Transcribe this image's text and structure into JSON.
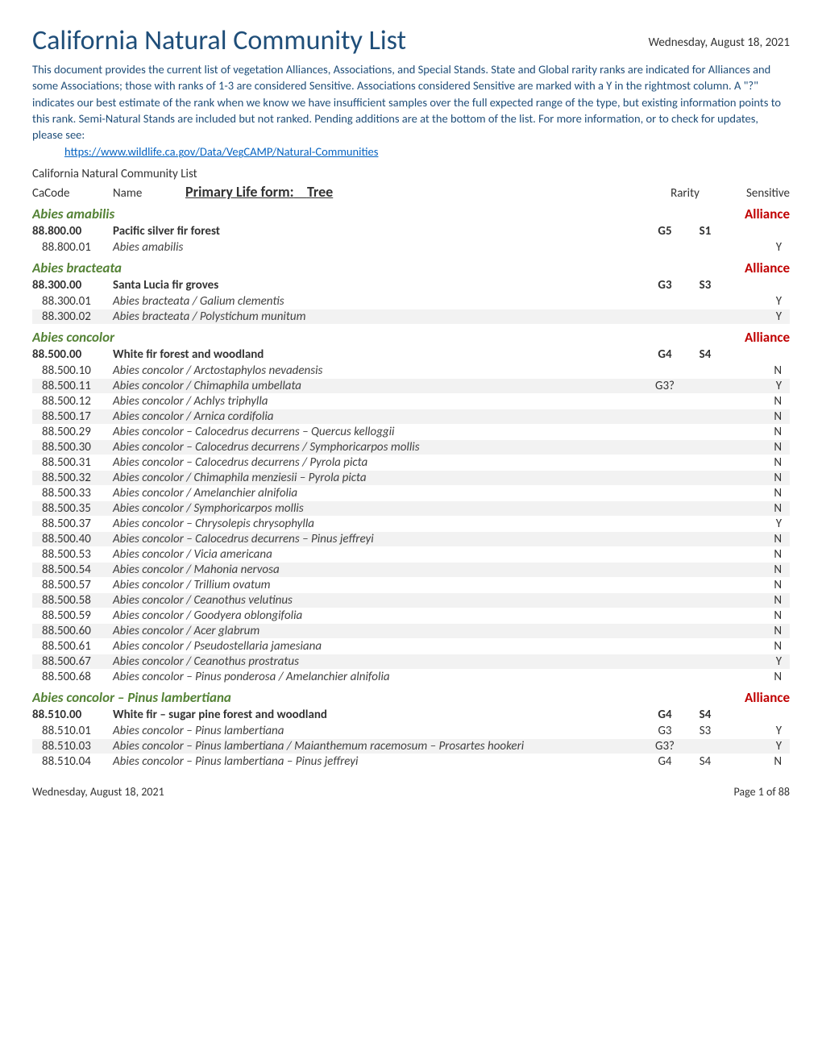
{
  "header": {
    "main_title": "California Natural Community List",
    "date": "Wednesday, August 18, 2021",
    "intro_text": "This document provides the current list of vegetation Alliances, Associations, and Special Stands. State and Global rarity ranks are indicated for Alliances and some Associations; those with ranks of 1-3 are considered Sensitive. Associations considered Sensitive are marked with a Y in the rightmost column. A \"?\" indicates our best estimate of the rank when we know we have insufficient samples over the full expected range of the type, but existing information points to this rank. Semi-Natural Stands are included but not ranked. Pending additions are at the bottom of the list. For more information, or to check for updates, please see:",
    "link_text": "https://www.wildlife.ca.gov/Data/VegCAMP/Natural-Communities",
    "list_title": "California Natural Community List",
    "primary_life_form_label": "Primary Life form:",
    "primary_life_form_value": "Tree",
    "col_code": "CaCode",
    "col_name": "Name",
    "col_rarity": "Rarity",
    "col_sensitive": "Sensitive"
  },
  "alliance_label": "Alliance",
  "colors": {
    "title": "#1f4e79",
    "species": "#548235",
    "alliance": "#c00000",
    "link": "#0563c1",
    "stripe": "#f2f2f2",
    "entry_text": "#404040"
  },
  "sections": [
    {
      "species": "Abies amabilis",
      "group": {
        "code": "88.800.00",
        "name": "Pacific silver fir forest",
        "g": "G5",
        "s": "S1"
      },
      "entries": [
        {
          "code": "88.800.01",
          "name": "Abies amabilis",
          "g": "",
          "s": "",
          "sensitive": "Y",
          "striped": false
        }
      ]
    },
    {
      "species": "Abies bracteata",
      "group": {
        "code": "88.300.00",
        "name": "Santa Lucia fir groves",
        "g": "G3",
        "s": "S3"
      },
      "entries": [
        {
          "code": "88.300.01",
          "name": "Abies bracteata / Galium clementis",
          "g": "",
          "s": "",
          "sensitive": "Y",
          "striped": false
        },
        {
          "code": "88.300.02",
          "name": "Abies bracteata / Polystichum munitum",
          "g": "",
          "s": "",
          "sensitive": "Y",
          "striped": true
        }
      ]
    },
    {
      "species": "Abies concolor",
      "group": {
        "code": "88.500.00",
        "name": "White fir forest and woodland",
        "g": "G4",
        "s": "S4"
      },
      "entries": [
        {
          "code": "88.500.10",
          "name": "Abies concolor / Arctostaphylos nevadensis",
          "g": "",
          "s": "",
          "sensitive": "N",
          "striped": false
        },
        {
          "code": "88.500.11",
          "name": "Abies concolor / Chimaphila umbellata",
          "g": "G3?",
          "s": "",
          "sensitive": "Y",
          "striped": true
        },
        {
          "code": "88.500.12",
          "name": "Abies concolor / Achlys triphylla",
          "g": "",
          "s": "",
          "sensitive": "N",
          "striped": false
        },
        {
          "code": "88.500.17",
          "name": "Abies concolor / Arnica cordifolia",
          "g": "",
          "s": "",
          "sensitive": "N",
          "striped": true
        },
        {
          "code": "88.500.29",
          "name": "Abies concolor – Calocedrus decurrens – Quercus kelloggii",
          "g": "",
          "s": "",
          "sensitive": "N",
          "striped": false
        },
        {
          "code": "88.500.30",
          "name": "Abies concolor – Calocedrus decurrens / Symphoricarpos mollis",
          "g": "",
          "s": "",
          "sensitive": "N",
          "striped": true
        },
        {
          "code": "88.500.31",
          "name": "Abies concolor – Calocedrus decurrens / Pyrola picta",
          "g": "",
          "s": "",
          "sensitive": "N",
          "striped": false
        },
        {
          "code": "88.500.32",
          "name": "Abies concolor / Chimaphila menziesii – Pyrola picta",
          "g": "",
          "s": "",
          "sensitive": "N",
          "striped": true
        },
        {
          "code": "88.500.33",
          "name": "Abies concolor / Amelanchier alnifolia",
          "g": "",
          "s": "",
          "sensitive": "N",
          "striped": false
        },
        {
          "code": "88.500.35",
          "name": "Abies concolor / Symphoricarpos mollis",
          "g": "",
          "s": "",
          "sensitive": "N",
          "striped": true
        },
        {
          "code": "88.500.37",
          "name": "Abies concolor – Chrysolepis chrysophylla",
          "g": "",
          "s": "",
          "sensitive": "Y",
          "striped": false
        },
        {
          "code": "88.500.40",
          "name": "Abies concolor – Calocedrus decurrens – Pinus jeffreyi",
          "g": "",
          "s": "",
          "sensitive": "N",
          "striped": true
        },
        {
          "code": "88.500.53",
          "name": "Abies concolor / Vicia americana",
          "g": "",
          "s": "",
          "sensitive": "N",
          "striped": false
        },
        {
          "code": "88.500.54",
          "name": "Abies concolor / Mahonia nervosa",
          "g": "",
          "s": "",
          "sensitive": "N",
          "striped": true
        },
        {
          "code": "88.500.57",
          "name": "Abies concolor / Trillium ovatum",
          "g": "",
          "s": "",
          "sensitive": "N",
          "striped": false
        },
        {
          "code": "88.500.58",
          "name": "Abies concolor / Ceanothus velutinus",
          "g": "",
          "s": "",
          "sensitive": "N",
          "striped": true
        },
        {
          "code": "88.500.59",
          "name": "Abies concolor / Goodyera oblongifolia",
          "g": "",
          "s": "",
          "sensitive": "N",
          "striped": false
        },
        {
          "code": "88.500.60",
          "name": "Abies concolor / Acer glabrum",
          "g": "",
          "s": "",
          "sensitive": "N",
          "striped": true
        },
        {
          "code": "88.500.61",
          "name": "Abies concolor / Pseudostellaria jamesiana",
          "g": "",
          "s": "",
          "sensitive": "N",
          "striped": false
        },
        {
          "code": "88.500.67",
          "name": "Abies concolor / Ceanothus prostratus",
          "g": "",
          "s": "",
          "sensitive": "Y",
          "striped": true
        },
        {
          "code": "88.500.68",
          "name": "Abies concolor – Pinus ponderosa / Amelanchier alnifolia",
          "g": "",
          "s": "",
          "sensitive": "N",
          "striped": false
        }
      ]
    },
    {
      "species": "Abies concolor – Pinus lambertiana",
      "group": {
        "code": "88.510.00",
        "name": "White fir – sugar pine forest and woodland",
        "g": "G4",
        "s": "S4"
      },
      "entries": [
        {
          "code": "88.510.01",
          "name": "Abies concolor – Pinus lambertiana",
          "g": "G3",
          "s": "S3",
          "sensitive": "Y",
          "striped": false
        },
        {
          "code": "88.510.03",
          "name": "Abies concolor – Pinus lambertiana / Maianthemum racemosum – Prosartes hookeri",
          "g": "G3?",
          "s": "",
          "sensitive": "Y",
          "striped": true
        },
        {
          "code": "88.510.04",
          "name": "Abies concolor – Pinus lambertiana – Pinus jeffreyi",
          "g": "G4",
          "s": "S4",
          "sensitive": "N",
          "striped": false
        }
      ]
    }
  ],
  "footer": {
    "date": "Wednesday, August 18, 2021",
    "page": "Page 1 of 88"
  }
}
